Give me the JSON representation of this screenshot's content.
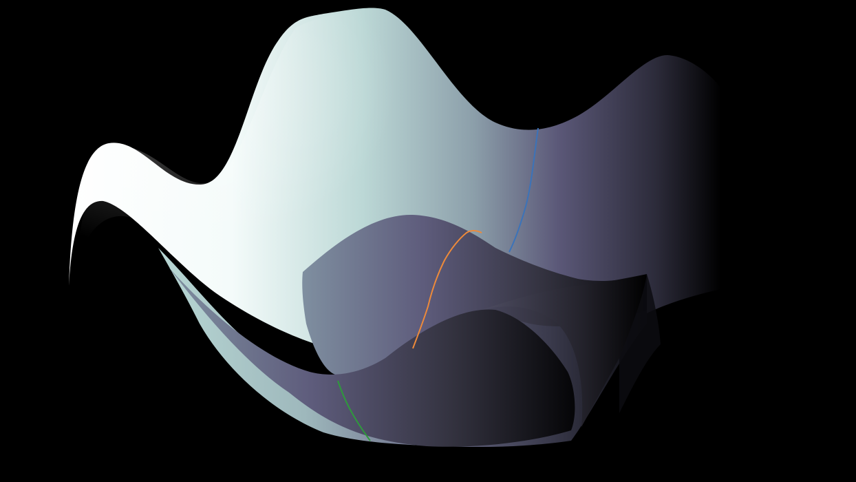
{
  "scene": {
    "background_color": "#000000",
    "surface_colors": {
      "highlight": "#ffffff",
      "teal": "#b9d8d6",
      "slate": "#8fa3ab",
      "violet": "#5c5a7a",
      "deep": "#2a2a38",
      "shadow": "#000000"
    },
    "paths": [
      {
        "name": "blue-path",
        "color": "#3b73b9"
      },
      {
        "name": "orange-path",
        "color": "#ee8a3a"
      },
      {
        "name": "green-path",
        "color": "#2e9a3c"
      }
    ]
  }
}
